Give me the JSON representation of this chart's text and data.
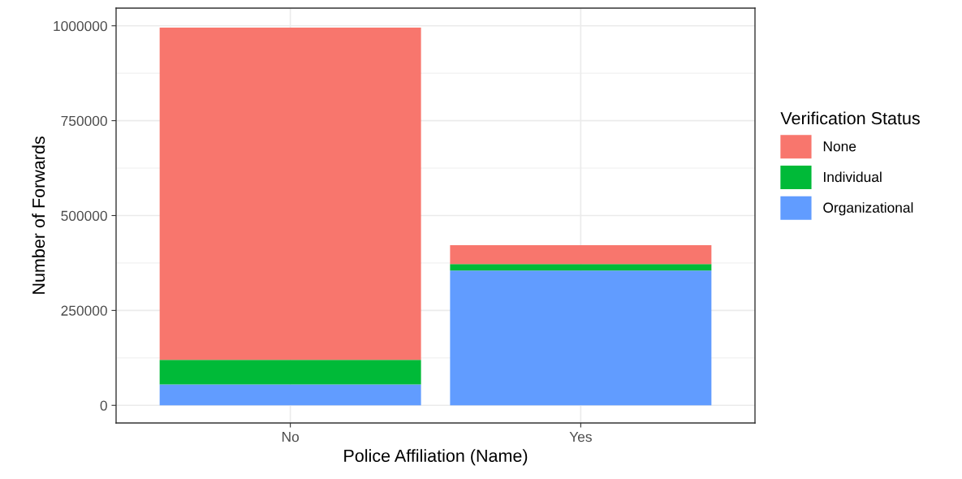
{
  "chart_data": {
    "type": "bar",
    "stacked": true,
    "xlabel": "Police Affiliation (Name)",
    "ylabel": "Number of Forwards",
    "legend_title": "Verification Status",
    "legend": "right",
    "categories": [
      "No",
      "Yes"
    ],
    "series": [
      {
        "name": "Organizational",
        "color": "#619cff",
        "values": [
          55000,
          355000
        ]
      },
      {
        "name": "Individual",
        "color": "#00ba38",
        "values": [
          65000,
          17000
        ]
      },
      {
        "name": "None",
        "color": "#f8766d",
        "values": [
          875000,
          50000
        ]
      }
    ],
    "ylim": [
      -46500,
      1046500
    ],
    "yticks": [
      0,
      250000,
      500000,
      750000,
      1000000
    ],
    "grid": true
  }
}
